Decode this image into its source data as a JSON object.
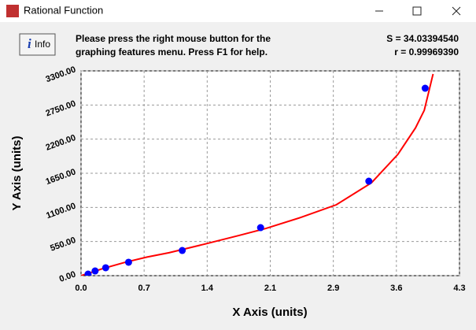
{
  "window": {
    "title": "Rational Function",
    "info_button": "Info",
    "message": [
      "Please press the right mouse button for the",
      "graphing features menu.  Press F1 for help."
    ],
    "stats": [
      "S = 34.03394540",
      "r = 0.99969390"
    ]
  },
  "chart_data": {
    "type": "scatter",
    "xlabel": "X Axis (units)",
    "ylabel": "Y Axis (units)",
    "xlim": [
      0,
      4.3
    ],
    "ylim": [
      0,
      3300
    ],
    "xticks": [
      {
        "value": 0,
        "label": "0.0"
      },
      {
        "value": 0.7167,
        "label": "0.7"
      },
      {
        "value": 1.4333,
        "label": "1.4"
      },
      {
        "value": 2.15,
        "label": "2.1"
      },
      {
        "value": 2.8667,
        "label": "2.9"
      },
      {
        "value": 3.5833,
        "label": "3.6"
      },
      4.3
    ],
    "yticks": [
      {
        "value": 0,
        "label": "0.00"
      },
      {
        "value": 550,
        "label": "550.00"
      },
      {
        "value": 1100,
        "label": "1100.00"
      },
      {
        "value": 1650,
        "label": "1650.00"
      },
      {
        "value": 2200,
        "label": "2200.00"
      },
      {
        "value": 2750,
        "label": "2750.00"
      },
      {
        "value": 3300,
        "label": "3300.00"
      }
    ],
    "grid": true,
    "series": [
      {
        "type": "scatter",
        "color": "#0000ff",
        "x": [
          0.08,
          0.16,
          0.28,
          0.54,
          1.15,
          2.04,
          3.27,
          3.91
        ],
        "values": [
          25,
          76,
          127,
          216,
          406,
          774,
          1523,
          3020
        ]
      },
      {
        "type": "line",
        "color": "#ff0000",
        "x": [
          0,
          0.25,
          0.5,
          0.75,
          1.0,
          1.4,
          1.8,
          2.1,
          2.5,
          2.9,
          3.3,
          3.6,
          3.8,
          3.9,
          4.0
        ],
        "values": [
          0,
          115,
          215,
          300,
          370,
          507,
          650,
          761,
          940,
          1142,
          1497,
          1954,
          2380,
          2665,
          3250
        ]
      }
    ]
  }
}
